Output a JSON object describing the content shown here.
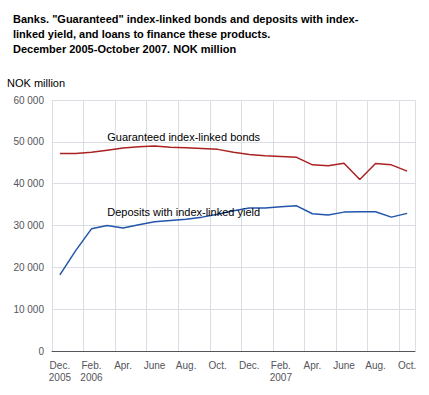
{
  "chart_data": {
    "type": "line",
    "title": "Banks. \"Guaranteed\" index-linked bonds and deposits with index-\nlinked yield, and loans to finance these products.\nDecember 2005-October 2007. NOK million",
    "ylabel": "NOK million",
    "categories": [
      "Dec.\n2005",
      null,
      "Feb.\n2006",
      null,
      "Apr.",
      null,
      "June",
      null,
      "Aug.",
      null,
      "Oct.",
      null,
      "Dec.",
      null,
      "Feb.\n2007",
      null,
      "Apr.",
      null,
      "June",
      null,
      "Aug.",
      null,
      "Oct."
    ],
    "series": [
      {
        "name": "Guaranteed index-linked bonds",
        "color": "#aa2222",
        "values": [
          47200,
          47200,
          47500,
          48000,
          48500,
          48800,
          49000,
          48700,
          48600,
          48400,
          48200,
          47500,
          47000,
          46700,
          46500,
          46300,
          44500,
          44300,
          44900,
          41000,
          44800,
          44500,
          43000
        ]
      },
      {
        "name": "Deposits with index-linked yield",
        "color": "#2255aa",
        "values": [
          18200,
          24000,
          29200,
          30000,
          29400,
          30200,
          30900,
          31200,
          31500,
          32000,
          32700,
          33500,
          34200,
          34200,
          34500,
          34700,
          32800,
          32500,
          33200,
          33300,
          33300,
          32000,
          32900
        ]
      }
    ],
    "ylim": [
      0,
      60000
    ],
    "yticks": [
      0,
      {
        "value": 10000,
        "label": "10 000"
      },
      {
        "value": 20000,
        "label": "20 000"
      },
      {
        "value": 30000,
        "label": "30 000"
      },
      {
        "value": 40000,
        "label": "40 000"
      },
      {
        "value": 50000,
        "label": "50 000"
      },
      {
        "value": 60000,
        "label": "60 000"
      }
    ],
    "grid": true
  }
}
